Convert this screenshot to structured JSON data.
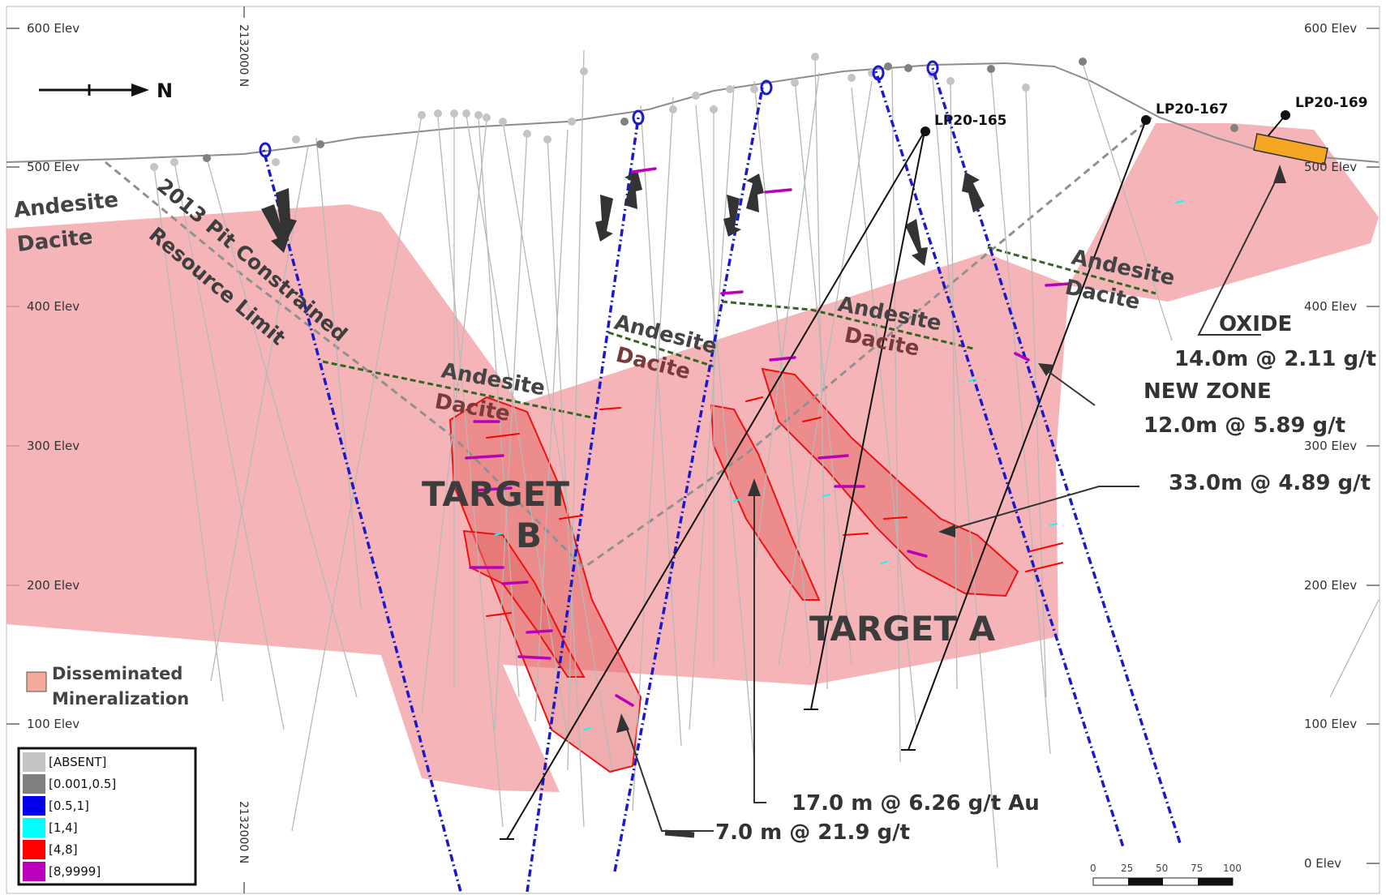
{
  "elevation_labels": [
    "600 Elev",
    "500 Elev",
    "400 Elev",
    "300 Elev",
    "200 Elev",
    "100 Elev",
    "0 Elev"
  ],
  "northing_label": "2132000 N",
  "north_arrow_label": "N",
  "lithology": {
    "andesite": "Andesite",
    "dacite": "Dacite"
  },
  "pit_limit_label": {
    "line1": "2013 Pit Constrained",
    "line2": "Resource Limit"
  },
  "targets": {
    "b_line1": "TARGET",
    "b_line2": "B",
    "a": "TARGET A"
  },
  "drill_holes": [
    "LP20-165",
    "LP20-167",
    "LP20-169"
  ],
  "intercepts": {
    "oxide_title": "OXIDE",
    "oxide_value": "14.0m @ 2.11 g/t",
    "new_zone_title": "NEW ZONE",
    "new_zone_value": "12.0m @ 5.89 g/t",
    "target_a_value": "33.0m @ 4.89 g/t",
    "hole_165_value": "17.0 m @ 6.26 g/t Au",
    "high_grade_value": "7.0 m @ 21.9 g/t"
  },
  "mineralization_legend": {
    "line1": "Disseminated",
    "line2": "Mineralization",
    "color": "#f4a99a"
  },
  "grade_legend": [
    {
      "label": "[ABSENT]",
      "color": "#c4c4c4"
    },
    {
      "label": "[0.001,0.5]",
      "color": "#808080"
    },
    {
      "label": "[0.5,1]",
      "color": "#0000ee"
    },
    {
      "label": "[1,4]",
      "color": "#00ffff"
    },
    {
      "label": "[4,8]",
      "color": "#ff0000"
    },
    {
      "label": "[8,9999]",
      "color": "#bb00bb"
    }
  ],
  "scale_bar": [
    "0",
    "25",
    "50",
    "75",
    "100"
  ],
  "colors": {
    "disseminated_fill": "#f2a0a4",
    "target_fill": "#e46a6a",
    "target_outline": "#ee1111",
    "contact": "#336622",
    "pit_limit": "#909090",
    "structure_hole": "#1a1acc"
  }
}
